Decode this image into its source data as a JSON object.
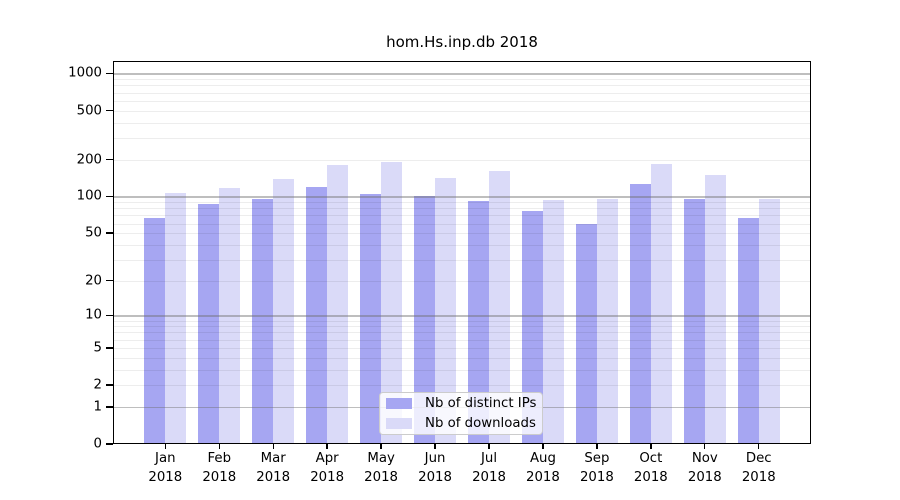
{
  "chart_data": {
    "type": "bar",
    "title": "hom.Hs.inp.db 2018",
    "xlabel": "",
    "ylabel": "",
    "y_scale": "log1p",
    "ylim": [
      0,
      1260
    ],
    "y_ticks": [
      1000,
      500,
      200,
      100,
      50,
      20,
      10,
      5,
      2,
      1,
      0
    ],
    "grid": "horizontal log gridlines, minor lines faint, decade lines darker, drawn over bars",
    "legend_position": "inside plot, bottom center",
    "categories": [
      "Jan",
      "Feb",
      "Mar",
      "Apr",
      "May",
      "Jun",
      "Jul",
      "Aug",
      "Sep",
      "Oct",
      "Nov",
      "Dec"
    ],
    "year": "2018",
    "series": [
      {
        "name": "Nb of distinct IPs",
        "color": "#a6a6f2",
        "values": [
          66,
          86,
          95,
          119,
          104,
          100,
          92,
          76,
          59,
          126,
          95,
          66
        ]
      },
      {
        "name": "Nb of downloads",
        "color": "#dadaf8",
        "values": [
          106,
          117,
          139,
          181,
          191,
          141,
          160,
          94,
          95,
          184,
          151,
          95
        ]
      }
    ],
    "colors": {
      "background": "#ffffff",
      "axis": "#000000",
      "grid_minor": "rgba(0,0,0,0.07)",
      "grid_major": "rgba(110,110,110,0.45)"
    }
  }
}
